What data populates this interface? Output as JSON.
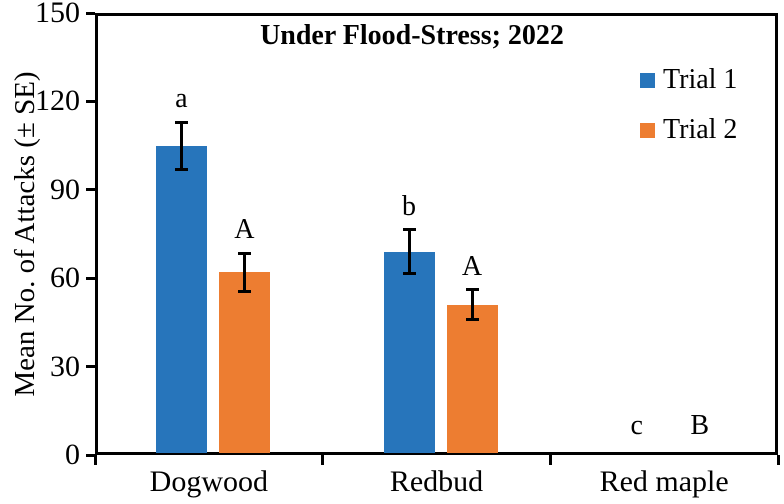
{
  "chart_data": {
    "type": "bar",
    "title": "Under Flood-Stress; 2022",
    "ylabel": "Mean No. of Attacks (± SE)",
    "xlabel": "",
    "ylim": [
      0,
      150
    ],
    "yticks": [
      0,
      30,
      60,
      90,
      120,
      150
    ],
    "grid": false,
    "legend_position": "top-right",
    "categories": [
      "Dogwood",
      "Redbud",
      "Red maple"
    ],
    "series": [
      {
        "name": "Trial 1",
        "color": "#2775BB",
        "values": [
          105,
          69,
          0
        ],
        "se": [
          8,
          7.5,
          0
        ],
        "letters": [
          "a",
          "b",
          "c"
        ]
      },
      {
        "name": "Trial 2",
        "color": "#ED7D31",
        "values": [
          62,
          51,
          0
        ],
        "se": [
          6.5,
          5,
          0
        ],
        "letters": [
          "A",
          "A",
          "B"
        ]
      }
    ],
    "error_bar_color": "#000000",
    "axis_color": "#000000"
  }
}
